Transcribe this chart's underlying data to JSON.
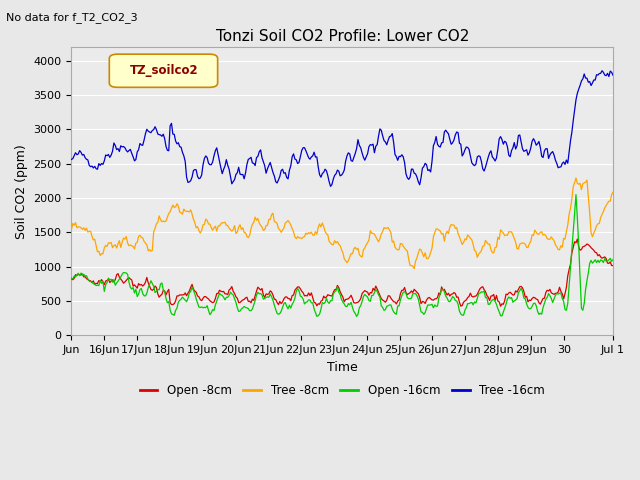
{
  "title": "Tonzi Soil CO2 Profile: Lower CO2",
  "subtitle": "No data for f_T2_CO2_3",
  "ylabel": "Soil CO2 (ppm)",
  "xlabel": "Time",
  "legend_label": "TZ_soilco2",
  "xtick_labels": [
    "Jun",
    "16Jun",
    "17Jun",
    "18Jun",
    "19Jun",
    "20Jun",
    "21Jun",
    "22Jun",
    "23Jun",
    "24Jun",
    "25Jun",
    "26Jun",
    "27Jun",
    "28Jun",
    "29Jun",
    "30",
    "Jul 1"
  ],
  "ytick_labels": [
    0,
    500,
    1000,
    1500,
    2000,
    2500,
    3000,
    3500,
    4000
  ],
  "ylim": [
    0,
    4200
  ],
  "xlim": [
    0,
    16.5
  ],
  "fig_bg_color": "#e8e8e8",
  "plot_bg_color": "#ebebeb",
  "grid_color": "#ffffff",
  "line_colors": {
    "open_8cm": "#dd0000",
    "tree_8cm": "#ffa500",
    "open_16cm": "#00cc00",
    "tree_16cm": "#0000cc"
  },
  "legend_box_facecolor": "#ffffcc",
  "legend_box_edgecolor": "#cc8800",
  "legend_label_color": "#8b0000",
  "legend_entries": [
    "Open -8cm",
    "Tree -8cm",
    "Open -16cm",
    "Tree -16cm"
  ],
  "legend_colors": [
    "#dd0000",
    "#ffa500",
    "#00cc00",
    "#0000cc"
  ],
  "title_fontsize": 11,
  "tick_fontsize": 8,
  "label_fontsize": 9
}
